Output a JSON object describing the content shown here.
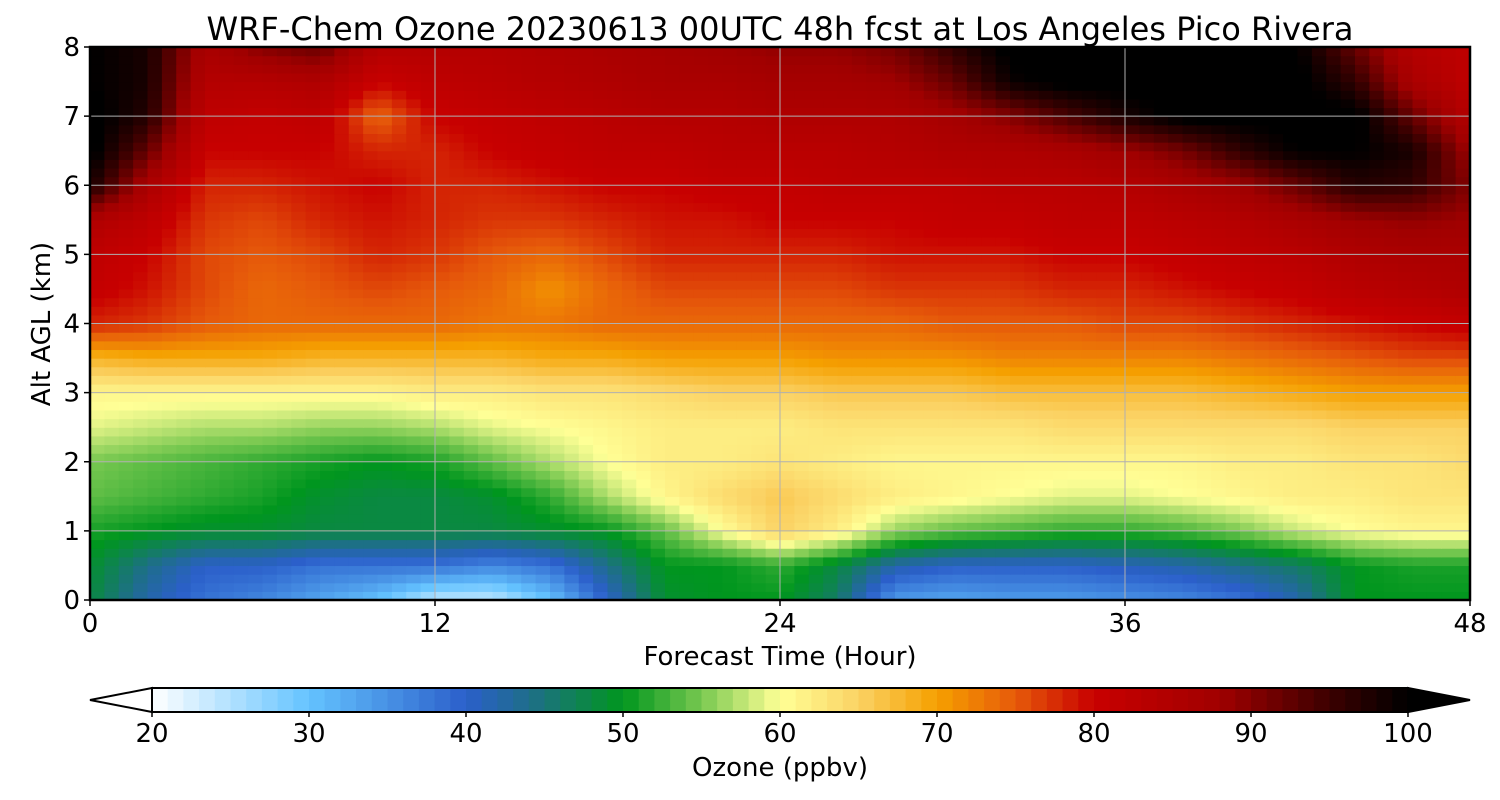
{
  "chart_data": {
    "type": "heatmap",
    "title": "WRF-Chem Ozone  20230613 00UTC 48h fcst at Los Angeles Pico Rivera",
    "xlabel": "Forecast Time (Hour)",
    "ylabel": "Alt AGL (km)",
    "xlim": [
      0,
      48
    ],
    "ylim": [
      0,
      8
    ],
    "xticks": [
      0,
      12,
      24,
      36,
      48
    ],
    "yticks": [
      0,
      1,
      2,
      3,
      4,
      5,
      6,
      7,
      8
    ],
    "grid": true,
    "x": [
      0,
      2,
      4,
      6,
      8,
      10,
      12,
      14,
      16,
      18,
      20,
      22,
      24,
      26,
      28,
      30,
      32,
      34,
      36,
      38,
      40,
      42,
      44,
      46,
      48
    ],
    "y": [
      0,
      0.5,
      1,
      1.5,
      2,
      2.5,
      3,
      3.5,
      4,
      4.5,
      5,
      5.5,
      6,
      6.5,
      7,
      7.5,
      8
    ],
    "z": [
      [
        48,
        42,
        38,
        36,
        33,
        30,
        24,
        24,
        30,
        40,
        49,
        50,
        50,
        46,
        34,
        33,
        34,
        34,
        35,
        36,
        38,
        42,
        50,
        50,
        50
      ],
      [
        49,
        44,
        40,
        40,
        38,
        38,
        38,
        36,
        38,
        44,
        50,
        50,
        52,
        48,
        42,
        40,
        40,
        40,
        41,
        42,
        44,
        46,
        50,
        51,
        51
      ],
      [
        51,
        50,
        49,
        49,
        48,
        48,
        48,
        48,
        49,
        50,
        54,
        60,
        65,
        62,
        56,
        54,
        53,
        52,
        52,
        53,
        55,
        58,
        60,
        61,
        61
      ],
      [
        54,
        53,
        52,
        51,
        49,
        48,
        48,
        49,
        52,
        57,
        61,
        64,
        66,
        64,
        62,
        61,
        60,
        59,
        59,
        60,
        61,
        62,
        62,
        63,
        63
      ],
      [
        55,
        54,
        53,
        52,
        51,
        50,
        51,
        54,
        57,
        60,
        62,
        62,
        63,
        62,
        61,
        61,
        61,
        61,
        61,
        61,
        62,
        62,
        63,
        63,
        64
      ],
      [
        59,
        58,
        57,
        57,
        56,
        56,
        57,
        59,
        60,
        61,
        62,
        62,
        62,
        63,
        63,
        63,
        63,
        64,
        64,
        64,
        64,
        64,
        65,
        65,
        65
      ],
      [
        61,
        61,
        61,
        61,
        61,
        61,
        62,
        62,
        63,
        63,
        64,
        65,
        65,
        66,
        66,
        66,
        67,
        67,
        67,
        67,
        68,
        69,
        70,
        70,
        70
      ],
      [
        68,
        69,
        69,
        69,
        68,
        68,
        68,
        68,
        69,
        69,
        70,
        70,
        70,
        71,
        71,
        71,
        72,
        72,
        72,
        72,
        73,
        74,
        75,
        76,
        76
      ],
      [
        78,
        77,
        75,
        74,
        74,
        74,
        74,
        73,
        73,
        74,
        74,
        74,
        74,
        74,
        74,
        75,
        75,
        75,
        76,
        76,
        77,
        78,
        79,
        80,
        81
      ],
      [
        81,
        79,
        76,
        74,
        75,
        76,
        75,
        74,
        71,
        74,
        76,
        76,
        76,
        76,
        77,
        77,
        77,
        78,
        78,
        79,
        80,
        81,
        83,
        84,
        85
      ],
      [
        82,
        80,
        76,
        75,
        76,
        78,
        77,
        75,
        74,
        76,
        78,
        78,
        78,
        78,
        79,
        79,
        79,
        80,
        80,
        81,
        82,
        83,
        85,
        86,
        86
      ],
      [
        85,
        82,
        77,
        76,
        78,
        79,
        78,
        77,
        77,
        78,
        79,
        79,
        80,
        80,
        80,
        81,
        81,
        82,
        82,
        83,
        84,
        86,
        88,
        89,
        88
      ],
      [
        98,
        86,
        78,
        78,
        79,
        80,
        78,
        78,
        79,
        80,
        80,
        81,
        81,
        82,
        82,
        82,
        83,
        83,
        84,
        86,
        88,
        92,
        97,
        96,
        90
      ],
      [
        101,
        92,
        80,
        80,
        80,
        78,
        78,
        80,
        81,
        82,
        82,
        83,
        83,
        83,
        84,
        85,
        85,
        86,
        88,
        91,
        96,
        100,
        100,
        98,
        88
      ],
      [
        101,
        97,
        82,
        81,
        82,
        74,
        80,
        81,
        82,
        83,
        84,
        84,
        85,
        85,
        85,
        87,
        90,
        94,
        98,
        101,
        101,
        101,
        101,
        92,
        84
      ],
      [
        100,
        98,
        84,
        84,
        85,
        80,
        82,
        83,
        84,
        85,
        86,
        86,
        87,
        87,
        88,
        92,
        99,
        101,
        101,
        101,
        101,
        101,
        96,
        86,
        82
      ],
      [
        100,
        98,
        86,
        90,
        92,
        84,
        84,
        84,
        85,
        86,
        87,
        88,
        89,
        89,
        91,
        96,
        101,
        101,
        101,
        101,
        101,
        100,
        92,
        84,
        82
      ]
    ],
    "colorbar": {
      "label": "Ozone  (ppbv)",
      "min": 20,
      "max": 100,
      "ticks": [
        20,
        30,
        40,
        50,
        60,
        70,
        80,
        90,
        100
      ],
      "extend": "both",
      "stops": [
        {
          "v": 20,
          "c": "#ffffff"
        },
        {
          "v": 30,
          "c": "#64c3ff"
        },
        {
          "v": 40,
          "c": "#2b5fca"
        },
        {
          "v": 44,
          "c": "#1e6e8a"
        },
        {
          "v": 50,
          "c": "#00961e"
        },
        {
          "v": 55,
          "c": "#78c850"
        },
        {
          "v": 60,
          "c": "#ffff96"
        },
        {
          "v": 65,
          "c": "#fbd264"
        },
        {
          "v": 70,
          "c": "#f5a000"
        },
        {
          "v": 75,
          "c": "#e65a0a"
        },
        {
          "v": 80,
          "c": "#c80000"
        },
        {
          "v": 88,
          "c": "#a00000"
        },
        {
          "v": 95,
          "c": "#3c0000"
        },
        {
          "v": 100,
          "c": "#000000"
        }
      ]
    }
  }
}
